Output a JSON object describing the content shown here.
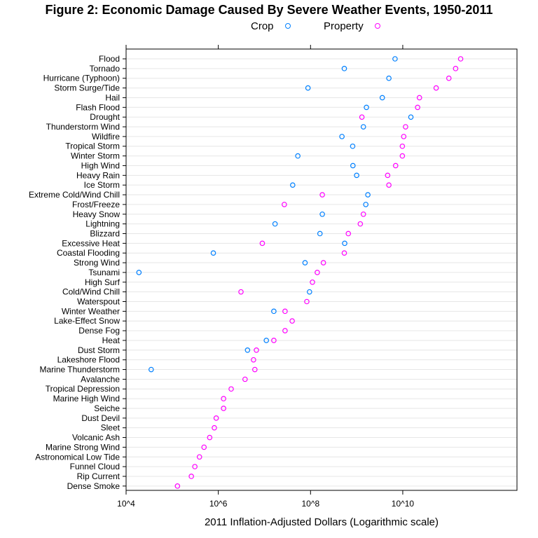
{
  "chart_data": {
    "type": "scatter",
    "title": "Figure 2: Economic Damage Caused By Severe Weather Events, 1950-2011",
    "xlabel": "2011 Inflation-Adjusted Dollars (Logarithmic scale)",
    "x_scale": "log10",
    "xlim": [
      10000,
      3000000000000
    ],
    "x_ticks": [
      {
        "value": 10000,
        "label": "10^4"
      },
      {
        "value": 1000000,
        "label": "10^6"
      },
      {
        "value": 100000000,
        "label": "10^8"
      },
      {
        "value": 10000000000,
        "label": "10^10"
      }
    ],
    "legend_position": "top",
    "grid": "horizontal",
    "categories": [
      "Flood",
      "Tornado",
      "Hurricane (Typhoon)",
      "Storm Surge/Tide",
      "Hail",
      "Flash Flood",
      "Drought",
      "Thunderstorm Wind",
      "Wildfire",
      "Tropical Storm",
      "Winter Storm",
      "High Wind",
      "Heavy Rain",
      "Ice Storm",
      "Extreme Cold/Wind Chill",
      "Frost/Freeze",
      "Heavy Snow",
      "Lightning",
      "Blizzard",
      "Excessive Heat",
      "Coastal Flooding",
      "Strong Wind",
      "Tsunami",
      "High Surf",
      "Cold/Wind Chill",
      "Waterspout",
      "Winter Weather",
      "Lake-Effect Snow",
      "Dense Fog",
      "Heat",
      "Dust Storm",
      "Lakeshore Flood",
      "Marine Thunderstorm",
      "Avalanche",
      "Tropical Depression",
      "Marine High Wind",
      "Seiche",
      "Dust Devil",
      "Sleet",
      "Volcanic Ash",
      "Marine Strong Wind",
      "Astronomical Low Tide",
      "Funnel Cloud",
      "Rip Current",
      "Dense Smoke"
    ],
    "series": [
      {
        "name": "Crop",
        "color": "#0080ff",
        "values": [
          6800000000,
          540000000,
          5000000000,
          88000000,
          3600000000,
          1630000000,
          15000000000,
          1400000000,
          480000000,
          820000000,
          53000000,
          830000000,
          1000000000,
          41000000,
          1750000000,
          1580000000,
          180000000,
          17000000,
          160000000,
          550000000,
          780000,
          76000000,
          19000,
          null,
          95000000,
          null,
          16000000,
          null,
          null,
          11000000,
          4300000,
          null,
          35000,
          null,
          null,
          null,
          null,
          null,
          null,
          null,
          null,
          null,
          null,
          null,
          null
        ]
      },
      {
        "name": "Property",
        "color": "#ff00ff",
        "values": [
          180000000000,
          140000000000,
          100000000000,
          53000000000,
          23000000000,
          21000000000,
          1300000000,
          11500000000,
          10500000000,
          9800000000,
          9800000000,
          7000000000,
          4700000000,
          5000000000,
          180000000,
          27000000,
          1400000000,
          1200000000,
          660000000,
          9000000,
          540000000,
          190000000,
          140000000,
          110000000,
          3100000,
          83000000,
          28000000,
          40000000,
          28000000,
          16000000,
          6700000,
          5800000,
          6200000,
          3800000,
          1900000,
          1300000,
          1300000,
          900000,
          820000,
          650000,
          490000,
          390000,
          310000,
          260000,
          130000
        ]
      }
    ]
  }
}
